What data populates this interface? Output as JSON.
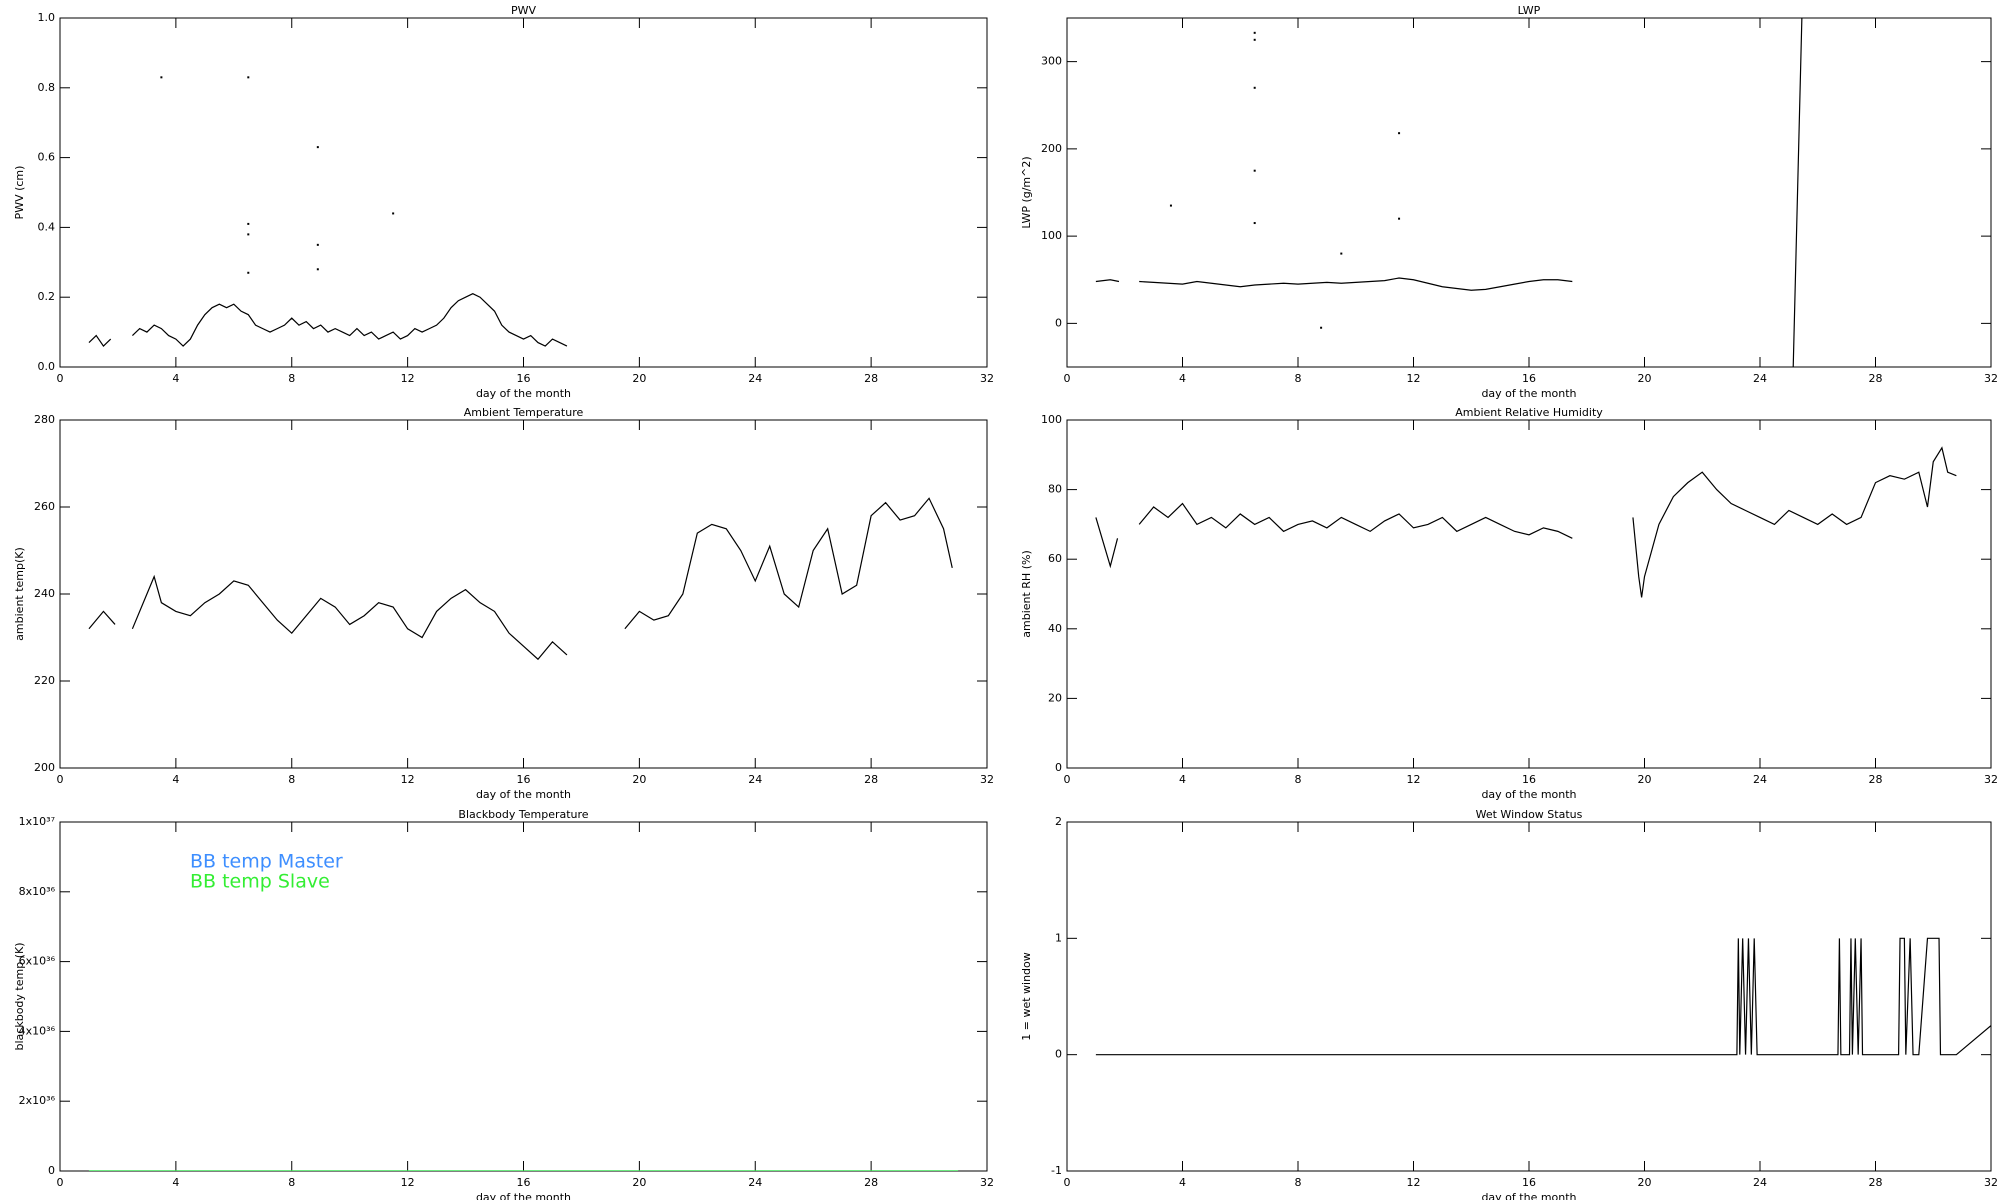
{
  "chart_data": [
    {
      "type": "line",
      "title": "PWV",
      "xlabel": "day of the month",
      "ylabel": "PWV (cm)",
      "xlim": [
        0,
        32
      ],
      "xticks": [
        0,
        4,
        8,
        12,
        16,
        20,
        24,
        28,
        32
      ],
      "ylim": [
        0,
        1
      ],
      "yticks": [
        {
          "value": 0,
          "label": "0.0"
        },
        0.2,
        0.4,
        0.6,
        0.8,
        {
          "value": 1,
          "label": "1.0"
        }
      ],
      "series": [
        {
          "color": "#000000",
          "mode": "line",
          "x": [
            1,
            1.25,
            1.5,
            1.75,
            2.1,
            2.5,
            2.75,
            3,
            3.25,
            3.5,
            3.75,
            4,
            4.25,
            4.5,
            4.75,
            5,
            5.25,
            5.5,
            5.75,
            6,
            6.25,
            6.5,
            6.75,
            7,
            7.25,
            7.5,
            7.75,
            8,
            8.25,
            8.5,
            8.75,
            9,
            9.25,
            9.5,
            9.75,
            10,
            10.25,
            10.5,
            10.75,
            11,
            11.25,
            11.5,
            11.75,
            12,
            12.25,
            12.5,
            12.75,
            13,
            13.25,
            13.5,
            13.75,
            14,
            14.25,
            14.5,
            14.75,
            15,
            15.25,
            15.5,
            15.75,
            16,
            16.25,
            16.5,
            16.75,
            17,
            17.25,
            17.5
          ],
          "values": [
            0.07,
            0.09,
            0.06,
            0.08,
            null,
            0.09,
            0.11,
            0.1,
            0.12,
            0.11,
            0.09,
            0.08,
            0.06,
            0.08,
            0.12,
            0.15,
            0.17,
            0.18,
            0.17,
            0.18,
            0.16,
            0.15,
            0.12,
            0.11,
            0.1,
            0.11,
            0.12,
            0.14,
            0.12,
            0.13,
            0.11,
            0.12,
            0.1,
            0.11,
            0.1,
            0.09,
            0.11,
            0.09,
            0.1,
            0.08,
            0.09,
            0.1,
            0.08,
            0.09,
            0.11,
            0.1,
            0.11,
            0.12,
            0.14,
            0.17,
            0.19,
            0.2,
            0.21,
            0.2,
            0.18,
            0.16,
            0.12,
            0.1,
            0.09,
            0.08,
            0.09,
            0.07,
            0.06,
            0.08,
            0.07,
            0.06
          ]
        },
        {
          "color": "#000000",
          "mode": "markers",
          "x": [
            3.5,
            6.5,
            6.5,
            6.5,
            8.9,
            8.9,
            8.9,
            11.5,
            6.5
          ],
          "values": [
            0.83,
            0.83,
            0.41,
            0.38,
            0.63,
            0.35,
            0.28,
            0.44,
            0.27
          ]
        }
      ]
    },
    {
      "type": "line",
      "title": "LWP",
      "xlabel": "day of the month",
      "ylabel": "LWP (g/m^2)",
      "xlim": [
        0,
        32
      ],
      "xticks": [
        0,
        4,
        8,
        12,
        16,
        20,
        24,
        28,
        32
      ],
      "ylim": [
        -50,
        350
      ],
      "yticks": [
        0,
        100,
        200,
        300
      ],
      "series": [
        {
          "color": "#000000",
          "mode": "line",
          "x": [
            1,
            1.5,
            1.8,
            2.1,
            2.5,
            3,
            3.5,
            4,
            4.5,
            5,
            5.5,
            6,
            6.5,
            7,
            7.5,
            8,
            8.5,
            9,
            9.5,
            10,
            10.5,
            11,
            11.5,
            12,
            12.5,
            13,
            13.5,
            14,
            14.5,
            15,
            15.5,
            16,
            16.5,
            17,
            17.5,
            21,
            25.15,
            25.45
          ],
          "values": [
            48,
            50,
            48,
            null,
            48,
            47,
            46,
            45,
            48,
            46,
            44,
            42,
            44,
            45,
            46,
            45,
            46,
            47,
            46,
            47,
            48,
            49,
            52,
            50,
            46,
            42,
            40,
            38,
            39,
            42,
            45,
            48,
            50,
            50,
            48,
            null,
            -50,
            350
          ]
        },
        {
          "color": "#000000",
          "mode": "markers",
          "x": [
            3.6,
            6.5,
            6.5,
            6.5,
            6.5,
            6.5,
            11.5,
            11.5,
            8.8,
            9.5
          ],
          "values": [
            135,
            333,
            325,
            270,
            175,
            115,
            218,
            120,
            -5,
            80
          ]
        }
      ]
    },
    {
      "type": "line",
      "title": "Ambient Temperature",
      "xlabel": "day of the month",
      "ylabel": "ambient temp(K)",
      "xlim": [
        0,
        32
      ],
      "xticks": [
        0,
        4,
        8,
        12,
        16,
        20,
        24,
        28,
        32
      ],
      "ylim": [
        200,
        280
      ],
      "yticks": [
        200,
        220,
        240,
        260,
        280
      ],
      "series": [
        {
          "color": "#000000",
          "mode": "line",
          "x": [
            1,
            1.5,
            1.9,
            2.2,
            2.5,
            3,
            3.25,
            3.5,
            4,
            4.5,
            5,
            5.5,
            6,
            6.5,
            7,
            7.5,
            8,
            8.5,
            9,
            9.5,
            10,
            10.5,
            11,
            11.5,
            12,
            12.5,
            13,
            13.5,
            14,
            14.5,
            15,
            15.5,
            16,
            16.5,
            17,
            17.5,
            18.5,
            19.5,
            20,
            20.5,
            21,
            21.5,
            22,
            22.5,
            23,
            23.5,
            24,
            24.5,
            25,
            25.5,
            26,
            26.5,
            27,
            27.5,
            28,
            28.5,
            29,
            29.5,
            30,
            30.5,
            30.8
          ],
          "values": [
            232,
            236,
            233,
            null,
            232,
            240,
            244,
            238,
            236,
            235,
            238,
            240,
            243,
            242,
            238,
            234,
            231,
            235,
            239,
            237,
            233,
            235,
            238,
            237,
            232,
            230,
            236,
            239,
            241,
            238,
            236,
            231,
            228,
            225,
            229,
            226,
            null,
            232,
            236,
            234,
            235,
            240,
            254,
            256,
            255,
            250,
            243,
            251,
            240,
            237,
            250,
            255,
            240,
            242,
            258,
            261,
            257,
            258,
            262,
            255,
            246
          ]
        }
      ]
    },
    {
      "type": "line",
      "title": "Ambient Relative Humidity",
      "xlabel": "day of the month",
      "ylabel": "ambient RH (%)",
      "xlim": [
        0,
        32
      ],
      "xticks": [
        0,
        4,
        8,
        12,
        16,
        20,
        24,
        28,
        32
      ],
      "ylim": [
        0,
        100
      ],
      "yticks": [
        0,
        20,
        40,
        60,
        80,
        100
      ],
      "series": [
        {
          "color": "#000000",
          "mode": "line",
          "x": [
            1,
            1.25,
            1.5,
            1.75,
            2.2,
            2.5,
            3,
            3.5,
            4,
            4.5,
            5,
            5.5,
            6,
            6.5,
            7,
            7.5,
            8,
            8.5,
            9,
            9.5,
            10,
            10.5,
            11,
            11.5,
            12,
            12.5,
            13,
            13.5,
            14,
            14.5,
            15,
            15.5,
            16,
            16.5,
            17,
            17.5,
            18.5,
            19.6,
            19.8,
            19.9,
            20,
            20.5,
            21,
            21.5,
            22,
            22.5,
            23,
            23.5,
            24,
            24.5,
            25,
            25.5,
            26,
            26.5,
            27,
            27.5,
            28,
            28.5,
            29,
            29.5,
            29.8,
            30,
            30.3,
            30.5,
            30.8
          ],
          "values": [
            72,
            65,
            58,
            66,
            null,
            70,
            75,
            72,
            76,
            70,
            72,
            69,
            73,
            70,
            72,
            68,
            70,
            71,
            69,
            72,
            70,
            68,
            71,
            73,
            69,
            70,
            72,
            68,
            70,
            72,
            70,
            68,
            67,
            69,
            68,
            66,
            null,
            72,
            55,
            49,
            55,
            70,
            78,
            82,
            85,
            80,
            76,
            74,
            72,
            70,
            74,
            72,
            70,
            73,
            70,
            72,
            82,
            84,
            83,
            85,
            75,
            88,
            92,
            85,
            84
          ]
        }
      ]
    },
    {
      "type": "line",
      "title": "Blackbody Temperature",
      "xlabel": "day of the month",
      "ylabel": "blackbody temp (K)",
      "xlim": [
        0,
        32
      ],
      "xticks": [
        0,
        4,
        8,
        12,
        16,
        20,
        24,
        28,
        32
      ],
      "ylim": [
        0,
        1e+37
      ],
      "yticks": [
        0,
        {
          "value": 2e+36,
          "label": "2x10³⁶"
        },
        {
          "value": 4e+36,
          "label": "4x10³⁶"
        },
        {
          "value": 6e+36,
          "label": "6x10³⁶"
        },
        {
          "value": 8e+36,
          "label": "8x10³⁶"
        },
        {
          "value": 1e+37,
          "label": "1x10³⁷"
        }
      ],
      "legend": "upper left",
      "series": [
        {
          "name": "BB temp Master",
          "color": "#3d8eff",
          "mode": "line",
          "x": [
            1,
            31
          ],
          "values": [
            0,
            0
          ]
        },
        {
          "name": "BB temp Slave",
          "color": "#33ee33",
          "mode": "line",
          "x": [
            1,
            31
          ],
          "values": [
            0,
            0
          ]
        }
      ]
    },
    {
      "type": "line",
      "title": "Wet Window Status",
      "xlabel": "day of the month",
      "ylabel": "1 = wet window",
      "xlim": [
        0,
        32
      ],
      "xticks": [
        0,
        4,
        8,
        12,
        16,
        20,
        24,
        28,
        32
      ],
      "ylim": [
        -1,
        2
      ],
      "yticks": [
        -1,
        0,
        1,
        2
      ],
      "series": [
        {
          "color": "#000000",
          "mode": "line",
          "x": [
            1,
            23.2,
            23.25,
            23.3,
            23.4,
            23.5,
            23.6,
            23.7,
            23.8,
            23.9,
            26.7,
            26.75,
            26.8,
            27.1,
            27.15,
            27.2,
            27.3,
            27.4,
            27.5,
            27.55,
            28.8,
            28.85,
            29,
            29.05,
            29.2,
            29.3,
            29.5,
            29.8,
            30.2,
            30.25,
            30.8,
            32
          ],
          "values": [
            0,
            0,
            1,
            0,
            1,
            0,
            1,
            0,
            1,
            0,
            0,
            1,
            0,
            0,
            1,
            0,
            1,
            0,
            1,
            0,
            0,
            1,
            1,
            0,
            1,
            0,
            0,
            1,
            1,
            0,
            0,
            0.25
          ]
        }
      ]
    }
  ]
}
